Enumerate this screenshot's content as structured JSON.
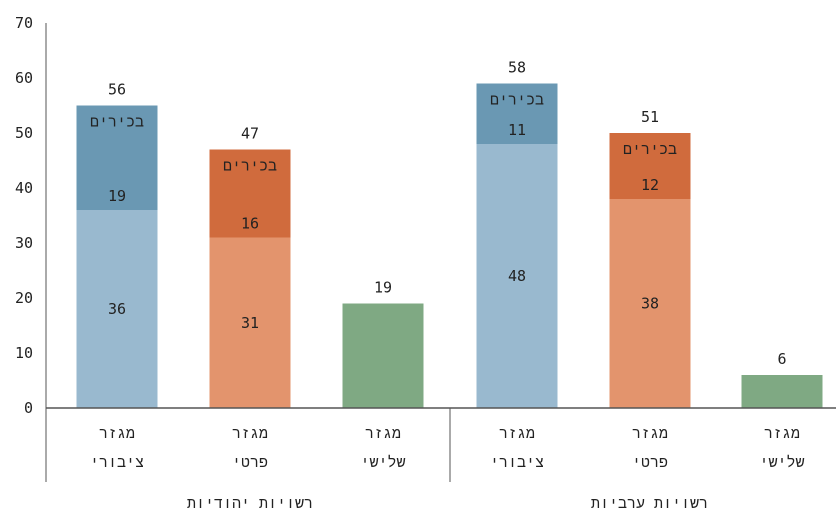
{
  "chart_data": {
    "type": "bar",
    "stacked": true,
    "title": "",
    "xlabel": "",
    "ylabel": "",
    "ylim": [
      0,
      70
    ],
    "yticks": [
      0,
      10,
      20,
      30,
      40,
      50,
      60,
      70
    ],
    "grid": false,
    "groups": [
      {
        "label": "רשויות יהודיות",
        "bars": [
          {
            "category": "מגזר ציבורי",
            "color_key": "public",
            "base": 36,
            "top": 19,
            "top_label": "בכירים",
            "total": 56
          },
          {
            "category": "מגזר פרטי",
            "color_key": "private",
            "base": 31,
            "top": 16,
            "top_label": "בכירים",
            "total": 47
          },
          {
            "category": "מגזר שלישי",
            "color_key": "third",
            "base": 19,
            "top": null,
            "top_label": null,
            "total": 19
          }
        ]
      },
      {
        "label": "רשויות ערביות",
        "bars": [
          {
            "category": "מגזר ציבורי",
            "color_key": "public",
            "base": 48,
            "top": 11,
            "top_label": "בכירים",
            "total": 58
          },
          {
            "category": "מגזר פרטי",
            "color_key": "private",
            "base": 38,
            "top": 12,
            "top_label": "בכירים",
            "total": 51
          },
          {
            "category": "מגזר שלישי",
            "color_key": "third",
            "base": 6,
            "top": null,
            "top_label": null,
            "total": 6
          }
        ]
      }
    ]
  },
  "colors": {
    "public": {
      "base": "#99b9cf",
      "top": "#6a98b3"
    },
    "private": {
      "base": "#e3946d",
      "top": "#d06b3d"
    },
    "third": {
      "base": "#7fa983",
      "top": "#7fa983"
    },
    "axis": "#555555"
  }
}
